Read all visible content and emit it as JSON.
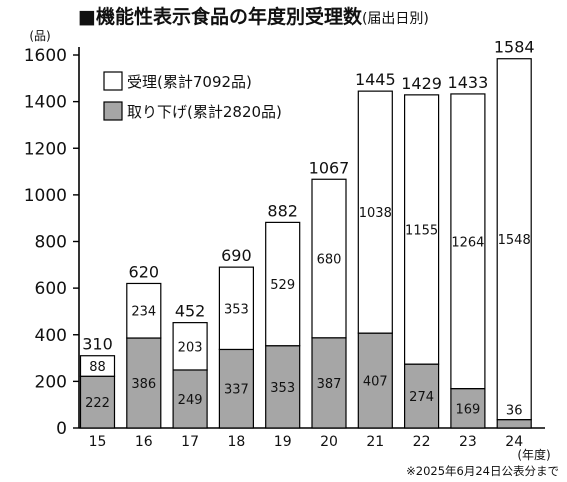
{
  "title": "■機能性表示食品の年度別受理数",
  "subtitle": "(届出日別)",
  "footnote": "※2025年6月24日公表分まで",
  "chart_data": {
    "type": "bar",
    "stacked": true,
    "title": "■機能性表示食品の年度別受理数",
    "subtitle": "(届出日別)",
    "ylabel": "(品)",
    "xlabel": "(年度)",
    "ylim": [
      0,
      1600
    ],
    "yticks": [
      0,
      200,
      400,
      600,
      800,
      1000,
      1200,
      1400,
      1600
    ],
    "categories": [
      "15",
      "16",
      "17",
      "18",
      "19",
      "20",
      "21",
      "22",
      "23",
      "24"
    ],
    "series": [
      {
        "name": "取り下げ(累計2820品)",
        "color": "#a6a6a6",
        "values": [
          222,
          386,
          249,
          337,
          353,
          387,
          407,
          274,
          169,
          36
        ]
      },
      {
        "name": "受理(累計7092品)",
        "color": "#ffffff",
        "values": [
          88,
          234,
          203,
          353,
          529,
          680,
          1038,
          1155,
          1264,
          1548
        ]
      }
    ],
    "totals": [
      310,
      620,
      452,
      690,
      882,
      1067,
      1445,
      1429,
      1433,
      1584
    ],
    "legend_position": "top-left",
    "grid": false
  }
}
